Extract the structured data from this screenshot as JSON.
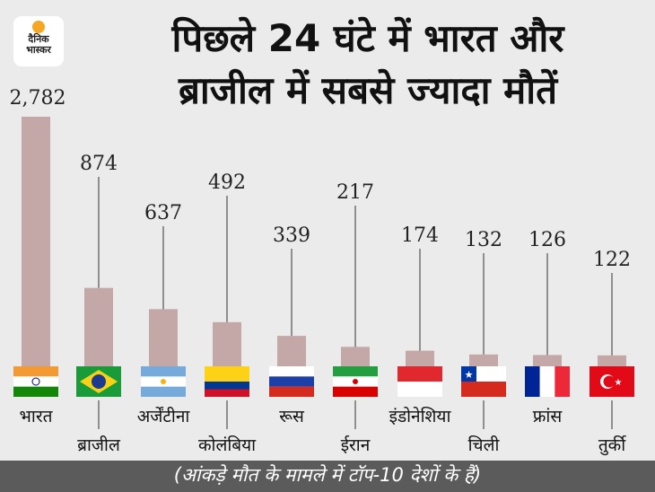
{
  "logo": {
    "line1": "दैनिक",
    "line2": "भास्कर"
  },
  "title": {
    "line1": "पिछले 24 घंटे में भारत और",
    "line2": "ब्राजील में सबसे ज्यादा मौतें"
  },
  "footer": "(आंकड़े मौत के मामले में टॉप-10 देशों के हैं)",
  "chart_data": {
    "type": "bar",
    "title": "पिछले 24 घंटे में भारत और ब्राजील में सबसे ज्यादा मौतें",
    "categories": [
      "भारत",
      "ब्राजील",
      "अर्जेंटीना",
      "कोलंबिया",
      "रूस",
      "ईरान",
      "इंडोनेशिया",
      "चिली",
      "फ्रांस",
      "तुर्की"
    ],
    "values": [
      2782,
      874,
      637,
      492,
      339,
      217,
      174,
      132,
      126,
      122
    ],
    "value_labels": [
      "2,782",
      "874",
      "637",
      "492",
      "339",
      "217",
      "174",
      "132",
      "126",
      "122"
    ],
    "flags": [
      "india",
      "brazil",
      "argentina",
      "colombia",
      "russia",
      "iran",
      "indonesia",
      "chile",
      "france",
      "turkey"
    ],
    "bar_color": "#c4a7a7",
    "grid": false
  }
}
